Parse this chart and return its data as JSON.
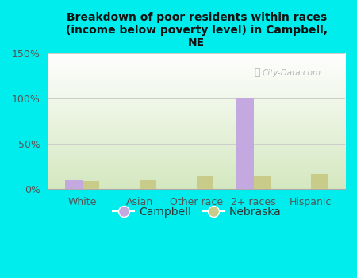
{
  "title": "Breakdown of poor residents within races\n(income below poverty level) in Campbell,\nNE",
  "categories": [
    "White",
    "Asian",
    "Other race",
    "2+ races",
    "Hispanic"
  ],
  "campbell_values": [
    10,
    0,
    0,
    100,
    0
  ],
  "nebraska_values": [
    9,
    11,
    15,
    15,
    17
  ],
  "campbell_color": "#c4a8e0",
  "nebraska_color": "#c8cc88",
  "bg_color": "#00eded",
  "plot_bg_top": "#ffffff",
  "plot_bg_bottom": "#d4e8c0",
  "ylim": [
    0,
    150
  ],
  "yticks": [
    0,
    50,
    100,
    150
  ],
  "ytick_labels": [
    "0%",
    "50%",
    "100%",
    "150%"
  ],
  "bar_width": 0.3,
  "legend_labels": [
    "Campbell",
    "Nebraska"
  ],
  "watermark": "City-Data.com",
  "grid_color": "#cccccc"
}
